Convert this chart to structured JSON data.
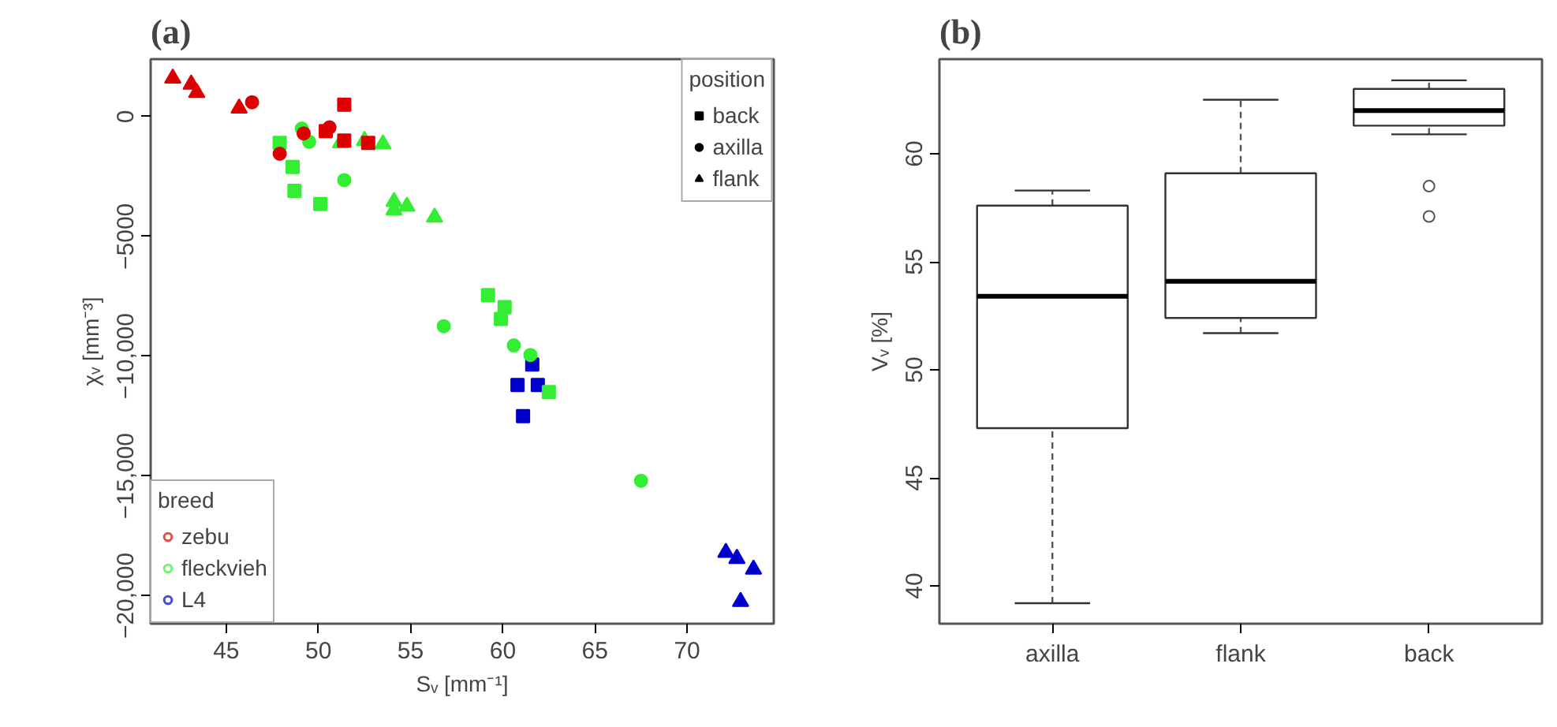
{
  "chart_data": [
    {
      "type": "scatter",
      "title": "(a)",
      "xlabel": "Sᵥ [mm⁻¹]",
      "ylabel": "χᵥ [mm⁻³]",
      "xlim": [
        40.9,
        74.7
      ],
      "ylim": [
        -21170,
        2400
      ],
      "xticks": [
        45,
        50,
        55,
        60,
        65,
        70
      ],
      "yticks": [
        0,
        {
          "value": -5000,
          "label": "−5000"
        },
        {
          "value": -10000,
          "label": "−10,000"
        },
        {
          "value": -15000,
          "label": "−15,000"
        },
        {
          "value": -20000,
          "label": "−20,000"
        }
      ],
      "grid": false,
      "legend": "bottom left",
      "legend_title": "breed",
      "annotations": [
        "position"
      ],
      "series": [
        {
          "name": "zebu",
          "color": "#dd0000",
          "marker": "triangle",
          "x": [
            42.1,
            43.1,
            43.4,
            45.7
          ],
          "values": [
            1600,
            1350,
            1000,
            350
          ]
        },
        {
          "color": "#dd0000",
          "marker": "circle",
          "x": [
            46.4,
            47.9,
            49.2,
            50.6
          ],
          "values": [
            600,
            -1550,
            -700,
            -450
          ]
        },
        {
          "color": "#dd0000",
          "marker": "square",
          "x": [
            50.4,
            51.4,
            52.7,
            51.4
          ],
          "values": [
            -600,
            -1000,
            -1100,
            500
          ]
        },
        {
          "name": "fleckvieh",
          "color": "#33ee33",
          "marker": "square",
          "x": [
            47.9,
            48.6,
            48.7,
            50.1,
            59.2,
            60.1,
            59.9,
            62.5
          ],
          "values": [
            -1100,
            -2100,
            -3100,
            -3650,
            -7450,
            -7950,
            -8450,
            -11500
          ]
        },
        {
          "color": "#33ee33",
          "marker": "circle",
          "x": [
            49.1,
            49.5,
            51.4,
            56.8,
            60.6,
            61.5,
            67.5
          ],
          "values": [
            -500,
            -1050,
            -2650,
            -8750,
            -9550,
            -9950,
            -15200
          ]
        },
        {
          "color": "#33ee33",
          "marker": "triangle",
          "x": [
            51.2,
            52.5,
            53.5,
            54.1,
            54.1,
            54.8,
            56.3
          ],
          "values": [
            -1100,
            -1000,
            -1150,
            -3550,
            -3900,
            -3750,
            -4200
          ]
        },
        {
          "name": "L4",
          "color": "#0000cc",
          "marker": "square",
          "x": [
            61.6,
            60.8,
            61.9,
            61.1
          ],
          "values": [
            -10350,
            -11200,
            -11200,
            -12500
          ]
        },
        {
          "color": "#0000cc",
          "marker": "triangle",
          "x": [
            72.1,
            72.7,
            73.6,
            72.9
          ],
          "values": [
            -18200,
            -18450,
            -18900,
            -20250
          ]
        },
        {
          "name": "back",
          "color": "#000000",
          "marker": "square"
        },
        {
          "name": "axilla",
          "color": "#000000",
          "marker": "circle"
        },
        {
          "name": "flank",
          "color": "#000000",
          "marker": "triangle"
        }
      ]
    },
    {
      "type": "box",
      "title": "(b)",
      "ylabel": "Vᵥ [%]",
      "categories": [
        "axilla",
        "flank",
        "back"
      ],
      "ylim": [
        38.25,
        64.38
      ],
      "yticks": [
        40,
        45,
        50,
        55,
        60
      ],
      "grid": false,
      "boxes": [
        {
          "low": 39.2,
          "q1": 47.3,
          "median": 53.4,
          "q3": 57.6,
          "high": 58.3
        },
        {
          "low": 51.7,
          "q1": 52.4,
          "median": 54.1,
          "q3": 59.1,
          "high": 62.5
        },
        {
          "low": 60.9,
          "q1": 61.3,
          "median": 62.0,
          "q3": 63.0,
          "high": 63.4,
          "outliers": [
            58.5,
            57.1
          ]
        }
      ]
    }
  ]
}
